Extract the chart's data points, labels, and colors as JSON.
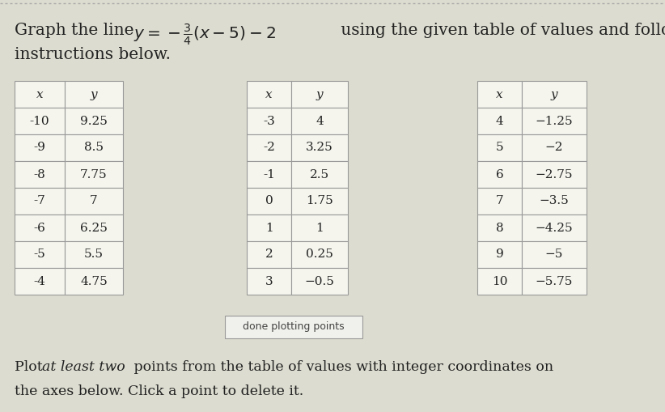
{
  "background_color": "#dcdcd0",
  "title_math": "$y = -\\frac{3}{4}(x - 5) - 2$",
  "table1": {
    "headers": [
      "x",
      "y"
    ],
    "rows": [
      [
        "-10",
        "9.25"
      ],
      [
        "-9",
        "8.5"
      ],
      [
        "-8",
        "7.75"
      ],
      [
        "-7",
        "7"
      ],
      [
        "-6",
        "6.25"
      ],
      [
        "-5",
        "5.5"
      ],
      [
        "-4",
        "4.75"
      ]
    ]
  },
  "table2": {
    "headers": [
      "x",
      "y"
    ],
    "rows": [
      [
        "-3",
        "4"
      ],
      [
        "-2",
        "3.25"
      ],
      [
        "-1",
        "2.5"
      ],
      [
        "0",
        "1.75"
      ],
      [
        "1",
        "1"
      ],
      [
        "2",
        "0.25"
      ],
      [
        "3",
        "−0.5"
      ]
    ]
  },
  "table3": {
    "headers": [
      "x",
      "y"
    ],
    "rows": [
      [
        "4",
        "−1.25"
      ],
      [
        "5",
        "−2"
      ],
      [
        "6",
        "−2.75"
      ],
      [
        "7",
        "−3.5"
      ],
      [
        "8",
        "−4.25"
      ],
      [
        "9",
        "−5"
      ],
      [
        "10",
        "−5.75"
      ]
    ]
  },
  "button_text": "done plotting points",
  "text_color": "#222222",
  "table_bg": "#f5f5ee",
  "table_border": "#999999",
  "dotted_color": "#aaaaaa",
  "button_bg": "#f0f0ec",
  "button_border": "#999999",
  "footer_normal": "points from the table of values with integer coordinates on",
  "footer_italic": "at least two",
  "footer_line2": "the axes below. Click a point to delete it."
}
